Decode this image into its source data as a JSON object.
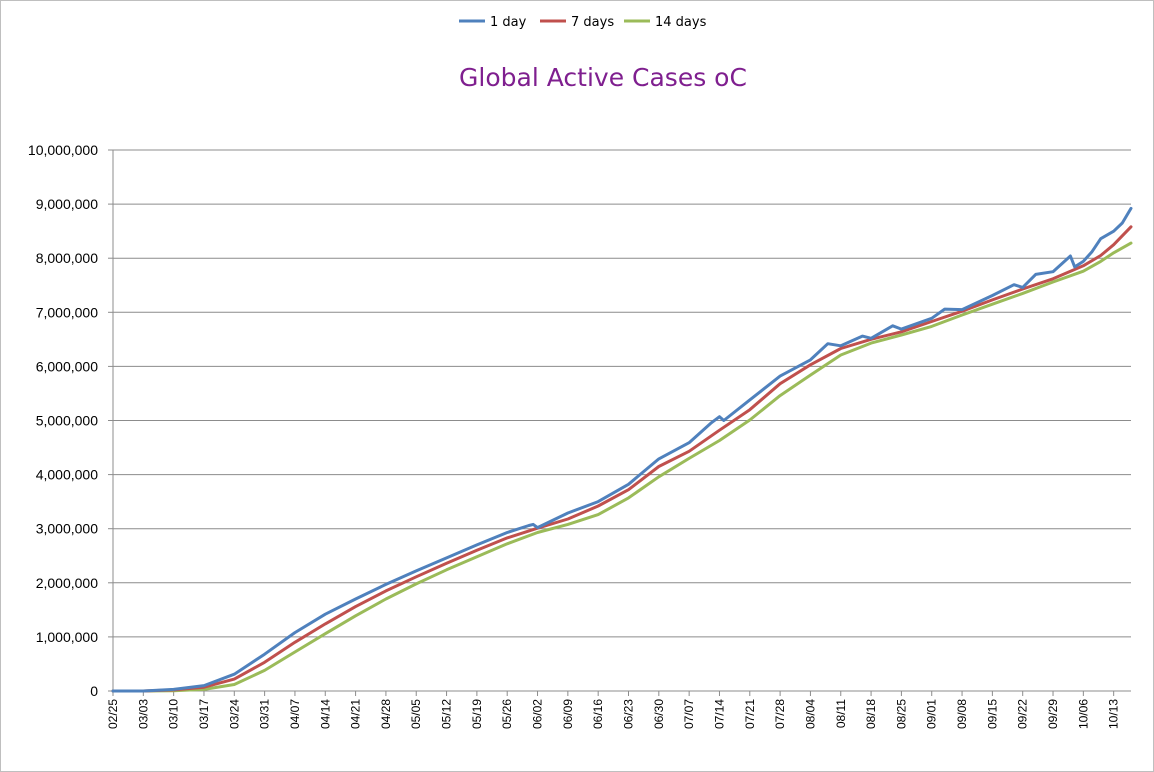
{
  "chart_data": {
    "type": "line",
    "title": "Global Active Cases oC",
    "xlabel": "",
    "ylabel": "",
    "ylim": [
      0,
      10000000
    ],
    "yticks": [
      "0",
      "1,000,000",
      "2,000,000",
      "3,000,000",
      "4,000,000",
      "5,000,000",
      "6,000,000",
      "7,000,000",
      "8,000,000",
      "9,000,000",
      "10,000,000"
    ],
    "xticks": [
      "02/25",
      "03/03",
      "03/10",
      "03/17",
      "03/24",
      "03/31",
      "04/07",
      "04/14",
      "04/21",
      "04/28",
      "05/05",
      "05/12",
      "05/19",
      "05/26",
      "06/02",
      "06/09",
      "06/16",
      "06/23",
      "06/30",
      "07/07",
      "07/14",
      "07/21",
      "07/28",
      "08/04",
      "08/11",
      "08/18",
      "08/25",
      "09/01",
      "09/08",
      "09/15",
      "09/22",
      "09/29",
      "10/06",
      "10/13"
    ],
    "x_start": "02/25",
    "x_end": "10/17",
    "grid": "horizontal",
    "legend": "top-center",
    "series": [
      {
        "name": "1 day",
        "color": "#4f81bd",
        "points": [
          [
            "02/25",
            0
          ],
          [
            "03/03",
            0
          ],
          [
            "03/10",
            30000
          ],
          [
            "03/17",
            100000
          ],
          [
            "03/24",
            310000
          ],
          [
            "03/31",
            680000
          ],
          [
            "04/07",
            1080000
          ],
          [
            "04/14",
            1420000
          ],
          [
            "04/21",
            1700000
          ],
          [
            "04/28",
            1970000
          ],
          [
            "05/05",
            2220000
          ],
          [
            "05/12",
            2460000
          ],
          [
            "05/19",
            2700000
          ],
          [
            "05/26",
            2930000
          ],
          [
            "05/31",
            3060000
          ],
          [
            "06/01",
            3080000
          ],
          [
            "06/02",
            3020000
          ],
          [
            "06/09",
            3290000
          ],
          [
            "06/16",
            3500000
          ],
          [
            "06/23",
            3820000
          ],
          [
            "06/30",
            4290000
          ],
          [
            "07/07",
            4590000
          ],
          [
            "07/12",
            4950000
          ],
          [
            "07/14",
            5070000
          ],
          [
            "07/15",
            5000000
          ],
          [
            "07/21",
            5380000
          ],
          [
            "07/28",
            5820000
          ],
          [
            "08/04",
            6120000
          ],
          [
            "08/08",
            6420000
          ],
          [
            "08/11",
            6380000
          ],
          [
            "08/16",
            6560000
          ],
          [
            "08/18",
            6520000
          ],
          [
            "08/23",
            6750000
          ],
          [
            "08/25",
            6690000
          ],
          [
            "09/01",
            6890000
          ],
          [
            "09/04",
            7060000
          ],
          [
            "09/08",
            7050000
          ],
          [
            "09/15",
            7310000
          ],
          [
            "09/20",
            7510000
          ],
          [
            "09/22",
            7460000
          ],
          [
            "09/25",
            7700000
          ],
          [
            "09/29",
            7750000
          ],
          [
            "10/03",
            8040000
          ],
          [
            "10/04",
            7840000
          ],
          [
            "10/06",
            7940000
          ],
          [
            "10/08",
            8120000
          ],
          [
            "10/10",
            8360000
          ],
          [
            "10/13",
            8500000
          ],
          [
            "10/15",
            8650000
          ],
          [
            "10/17",
            8920000
          ]
        ]
      },
      {
        "name": "7 days",
        "color": "#c0504d",
        "points": [
          [
            "02/25",
            0
          ],
          [
            "03/03",
            0
          ],
          [
            "03/10",
            20000
          ],
          [
            "03/17",
            70000
          ],
          [
            "03/24",
            220000
          ],
          [
            "03/31",
            530000
          ],
          [
            "04/07",
            900000
          ],
          [
            "04/14",
            1240000
          ],
          [
            "04/21",
            1560000
          ],
          [
            "04/28",
            1850000
          ],
          [
            "05/05",
            2110000
          ],
          [
            "05/12",
            2360000
          ],
          [
            "05/19",
            2600000
          ],
          [
            "05/26",
            2830000
          ],
          [
            "06/02",
            3010000
          ],
          [
            "06/09",
            3180000
          ],
          [
            "06/16",
            3420000
          ],
          [
            "06/23",
            3720000
          ],
          [
            "06/30",
            4150000
          ],
          [
            "07/07",
            4430000
          ],
          [
            "07/14",
            4820000
          ],
          [
            "07/21",
            5200000
          ],
          [
            "07/28",
            5680000
          ],
          [
            "08/04",
            6030000
          ],
          [
            "08/11",
            6330000
          ],
          [
            "08/18",
            6500000
          ],
          [
            "08/25",
            6640000
          ],
          [
            "09/01",
            6830000
          ],
          [
            "09/08",
            7020000
          ],
          [
            "09/15",
            7230000
          ],
          [
            "09/22",
            7430000
          ],
          [
            "09/29",
            7620000
          ],
          [
            "10/06",
            7860000
          ],
          [
            "10/10",
            8050000
          ],
          [
            "10/13",
            8250000
          ],
          [
            "10/17",
            8580000
          ]
        ]
      },
      {
        "name": "14 days",
        "color": "#9bbb59",
        "points": [
          [
            "02/25",
            0
          ],
          [
            "03/03",
            0
          ],
          [
            "03/10",
            5000
          ],
          [
            "03/17",
            30000
          ],
          [
            "03/24",
            120000
          ],
          [
            "03/31",
            380000
          ],
          [
            "04/07",
            720000
          ],
          [
            "04/14",
            1060000
          ],
          [
            "04/21",
            1390000
          ],
          [
            "04/28",
            1700000
          ],
          [
            "05/05",
            1980000
          ],
          [
            "05/12",
            2240000
          ],
          [
            "05/19",
            2480000
          ],
          [
            "05/26",
            2720000
          ],
          [
            "06/02",
            2930000
          ],
          [
            "06/09",
            3080000
          ],
          [
            "06/16",
            3260000
          ],
          [
            "06/23",
            3570000
          ],
          [
            "06/30",
            3960000
          ],
          [
            "07/07",
            4300000
          ],
          [
            "07/14",
            4630000
          ],
          [
            "07/21",
            5010000
          ],
          [
            "07/28",
            5460000
          ],
          [
            "08/04",
            5840000
          ],
          [
            "08/11",
            6210000
          ],
          [
            "08/18",
            6430000
          ],
          [
            "08/25",
            6580000
          ],
          [
            "09/01",
            6740000
          ],
          [
            "09/08",
            6950000
          ],
          [
            "09/15",
            7150000
          ],
          [
            "09/22",
            7350000
          ],
          [
            "09/29",
            7560000
          ],
          [
            "10/06",
            7760000
          ],
          [
            "10/10",
            7940000
          ],
          [
            "10/13",
            8100000
          ],
          [
            "10/17",
            8280000
          ]
        ]
      }
    ]
  }
}
